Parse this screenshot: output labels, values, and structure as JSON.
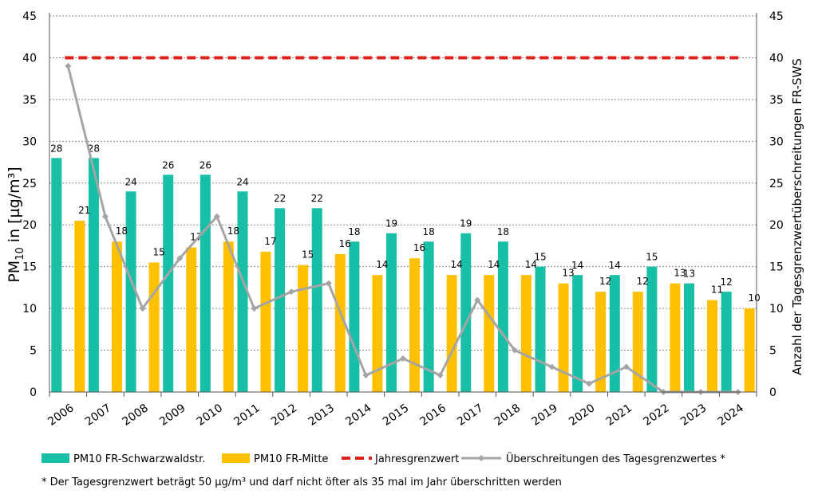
{
  "chart_data": {
    "type": "bar",
    "categories": [
      "2006",
      "2007",
      "2008",
      "2009",
      "2010",
      "2011",
      "2012",
      "2013",
      "2014",
      "2015",
      "2016",
      "2017",
      "2018",
      "2019",
      "2020",
      "2021",
      "2022",
      "2023",
      "2024"
    ],
    "series": [
      {
        "name": "PM10 FR-Schwarzwaldstr.",
        "type": "bar",
        "axis": "left",
        "color": "#16BFA6",
        "values": [
          28,
          28,
          24,
          26,
          26,
          24,
          22,
          22,
          18,
          19,
          18,
          19,
          18,
          15,
          14,
          14,
          15,
          13,
          12
        ],
        "bar_heights": [
          28,
          28,
          24,
          26,
          26,
          24,
          22,
          22,
          18,
          19,
          18,
          19,
          18,
          15,
          14,
          14,
          15,
          13,
          12
        ]
      },
      {
        "name": "PM10 FR-Mitte",
        "type": "bar",
        "axis": "left",
        "color": "#FFC000",
        "values": [
          21,
          18,
          15,
          17,
          18,
          17,
          15,
          16,
          14,
          16,
          14,
          14,
          14,
          13,
          12,
          12,
          13,
          11,
          10
        ],
        "bar_heights": [
          20.5,
          18,
          15.5,
          17.3,
          18,
          16.8,
          15.2,
          16.5,
          14,
          16,
          14,
          14,
          14,
          13,
          12,
          12,
          13,
          11,
          10
        ]
      },
      {
        "name": "Jahresgrenzwert",
        "type": "line",
        "style": "dashed",
        "axis": "left",
        "color": "#E0201B",
        "values": [
          40,
          40,
          40,
          40,
          40,
          40,
          40,
          40,
          40,
          40,
          40,
          40,
          40,
          40,
          40,
          40,
          40,
          40,
          40
        ]
      },
      {
        "name": "Überschreitungen des Tagesgrenzwertes *",
        "type": "line",
        "marker": "diamond",
        "axis": "right",
        "color": "#A5A5A5",
        "values": [
          39,
          21,
          10,
          16,
          21,
          10,
          12,
          13,
          2,
          4,
          2,
          11,
          5,
          3,
          1,
          3,
          0,
          0,
          0
        ]
      }
    ],
    "ylabel": "PM10 in [µg/m³]",
    "ylabel_parts": {
      "main": "PM",
      "sub": "10",
      "rest": " in [µg/m³]"
    },
    "y2label": "Anzahl der Tagesgrenzwertüberschreitungen FR-SWS",
    "ylim": [
      0,
      45
    ],
    "y2lim": [
      0,
      45
    ],
    "yticks": [
      "0",
      "5",
      "10",
      "15",
      "20",
      "25",
      "30",
      "35",
      "40",
      "45"
    ],
    "y2ticks": [
      "0",
      "5",
      "10",
      "15",
      "20",
      "25",
      "30",
      "35",
      "40",
      "45"
    ],
    "grid": true,
    "legend": "bottom",
    "footnote": "* Der Tagesgrenzwert beträgt 50 µg/m³ und darf nicht öfter als 35 mal im Jahr überschritten werden"
  }
}
